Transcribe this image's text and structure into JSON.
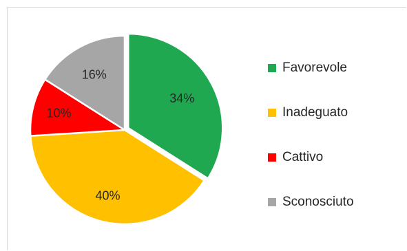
{
  "chart_data": {
    "type": "pie",
    "title": "",
    "categories": [
      "Favorevole",
      "Inadeguato",
      "Cattivo",
      "Sconosciuto"
    ],
    "values": [
      34,
      40,
      10,
      16
    ],
    "value_labels": [
      "34%",
      "40%",
      "10%",
      "16%"
    ],
    "colors": [
      "#1fa84f",
      "#ffc000",
      "#ff0000",
      "#a6a6a6"
    ],
    "start_angle_deg": 0,
    "direction": "clockwise",
    "legend_placement": "right",
    "slice_separator_color": "#ffffff"
  }
}
